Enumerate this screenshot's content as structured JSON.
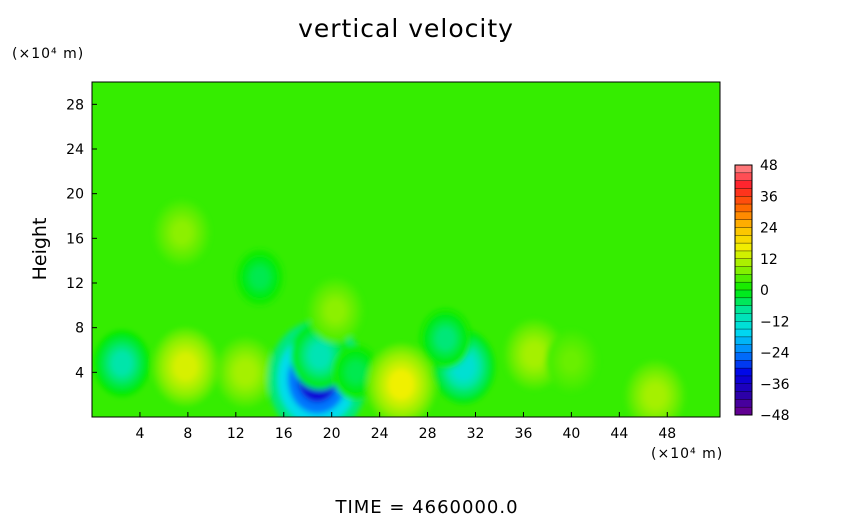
{
  "chart_data": {
    "type": "heatmap",
    "title": "vertical velocity",
    "xlabel": "",
    "ylabel": "Height",
    "x_unit": "(×10⁴ m)",
    "y_unit": "(×10⁴ m)",
    "xlim": [
      0,
      52.4
    ],
    "ylim": [
      0,
      30
    ],
    "x_ticks": [
      4,
      8,
      12,
      16,
      20,
      24,
      28,
      32,
      36,
      40,
      44,
      48
    ],
    "y_ticks": [
      4,
      8,
      12,
      16,
      20,
      24,
      28
    ],
    "background_value": 3,
    "field_features": [
      {
        "x": 2.5,
        "y": 4.8,
        "value": -9
      },
      {
        "x": 7.8,
        "y": 4.5,
        "value": 14
      },
      {
        "x": 12.8,
        "y": 4.0,
        "value": 10
      },
      {
        "x": 18.8,
        "y": 3.4,
        "value": -34
      },
      {
        "x": 19.0,
        "y": 5.5,
        "value": -10
      },
      {
        "x": 22.0,
        "y": 4.0,
        "value": -4
      },
      {
        "x": 25.8,
        "y": 2.9,
        "value": 16
      },
      {
        "x": 31.0,
        "y": 4.5,
        "value": -13
      },
      {
        "x": 29.5,
        "y": 7.0,
        "value": -6
      },
      {
        "x": 36.9,
        "y": 5.6,
        "value": 10
      },
      {
        "x": 40.0,
        "y": 5.0,
        "value": 6
      },
      {
        "x": 47.0,
        "y": 1.9,
        "value": 10
      },
      {
        "x": 7.5,
        "y": 16.5,
        "value": 8
      },
      {
        "x": 20.3,
        "y": 9.5,
        "value": 8
      },
      {
        "x": 14.0,
        "y": 12.5,
        "value": -4
      }
    ],
    "colorbar": {
      "ticks": [
        48,
        36,
        24,
        12,
        0,
        -12,
        -24,
        -36,
        -48
      ],
      "min": -48,
      "max": 48
    },
    "footer": "TIME  =  4660000.0"
  }
}
